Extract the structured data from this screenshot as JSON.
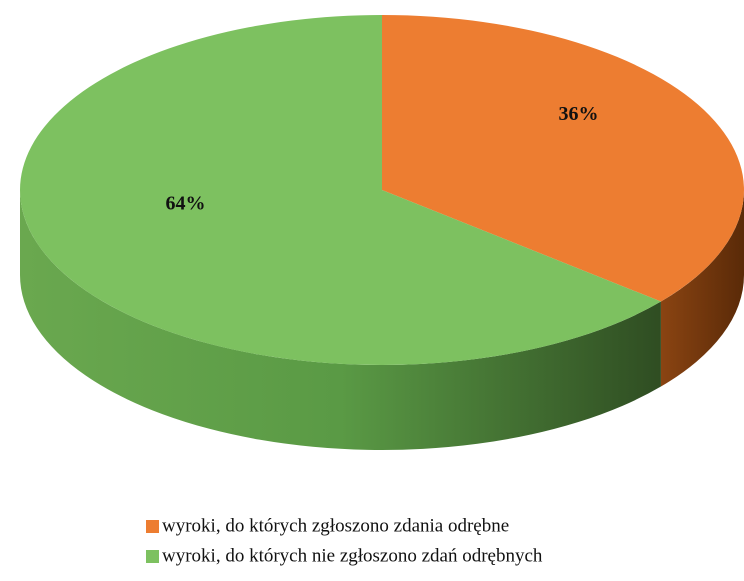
{
  "chart_data": {
    "type": "pie",
    "categories": [
      "wyroki, do których zgłoszono zdania odrębne",
      "wyroki, do których nie zgłoszono zdań odrębnych"
    ],
    "values": [
      36,
      64
    ],
    "value_labels": [
      "36%",
      "64%"
    ],
    "colors": [
      "#ED7D31",
      "#7DC160"
    ],
    "legend": "bottom"
  }
}
